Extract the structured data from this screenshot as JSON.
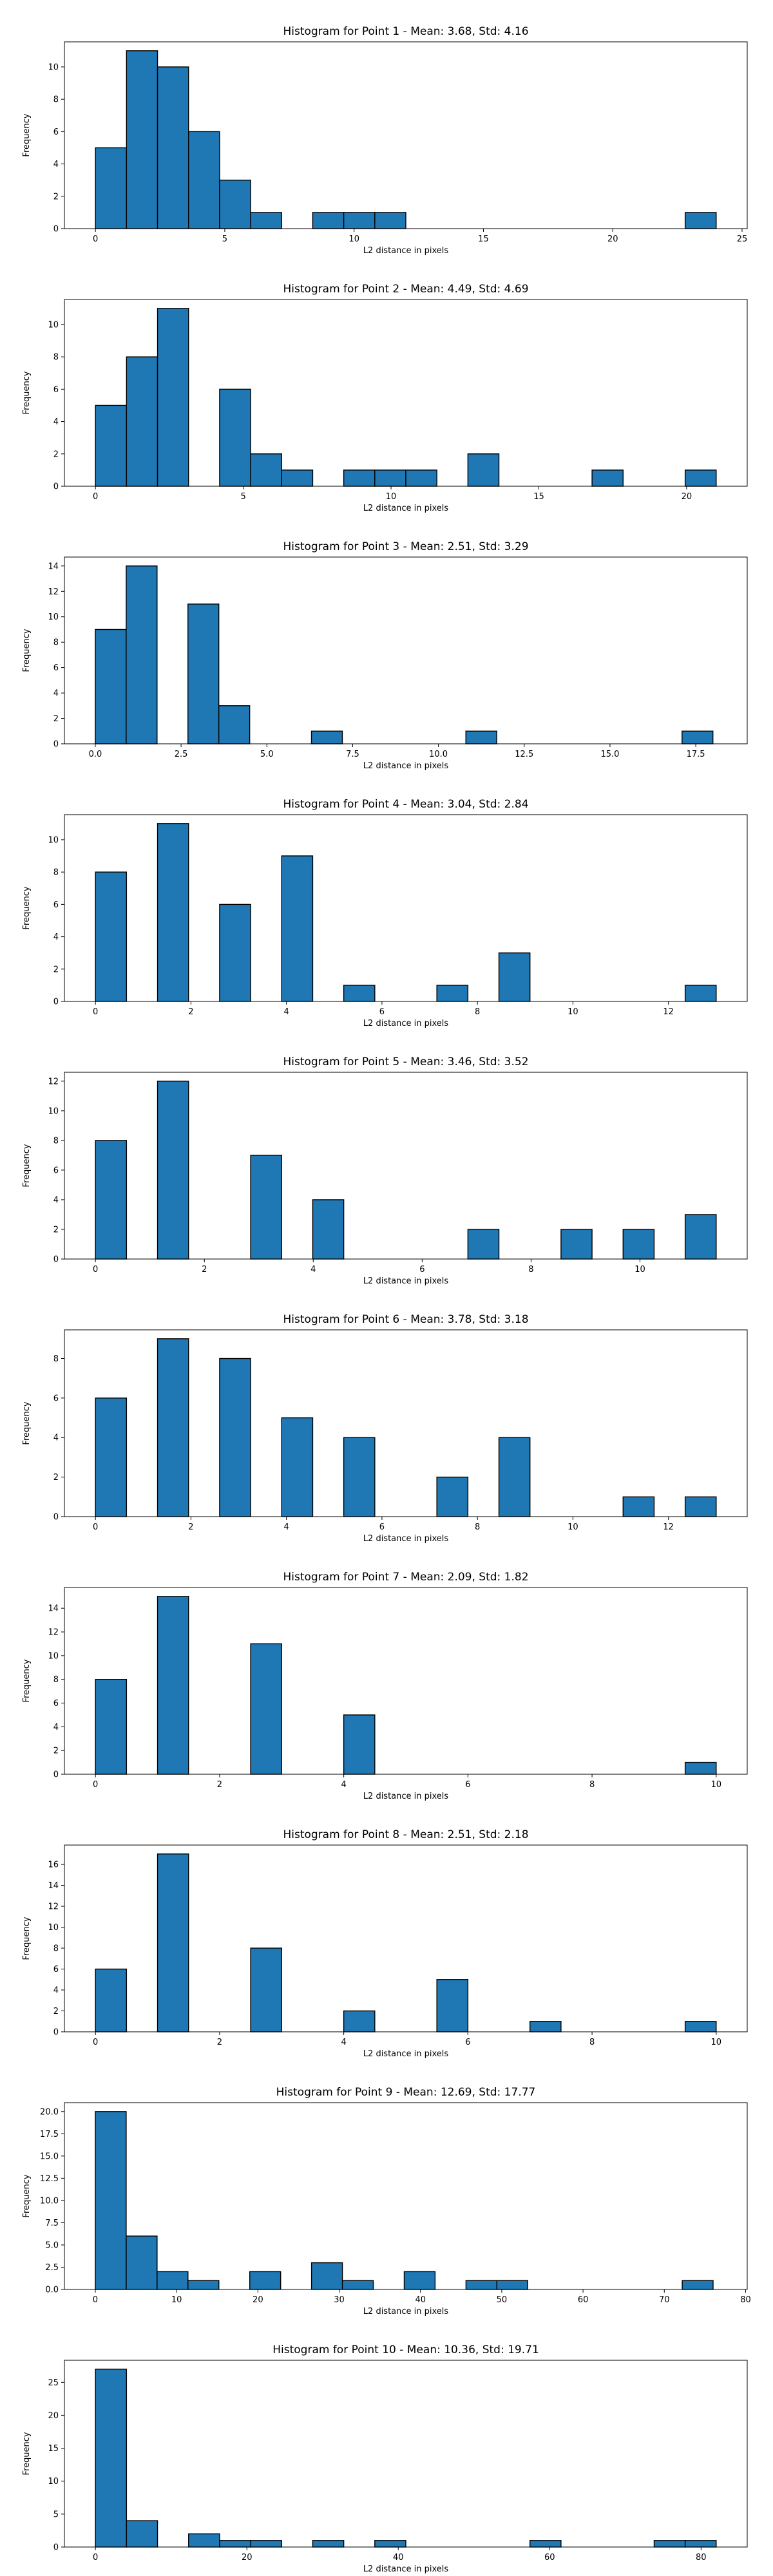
{
  "chart_data": [
    {
      "type": "bar",
      "title": "Histogram for Point 1 - Mean: 3.68, Std: 4.16",
      "xlabel": "L2 distance in pixels",
      "ylabel": "Frequency",
      "xlim": [
        -1.2,
        25.2
      ],
      "ylim": [
        0,
        11.55
      ],
      "bin_width": 1.2,
      "bins": [
        {
          "left": 0.0,
          "count": 5
        },
        {
          "left": 1.2,
          "count": 11
        },
        {
          "left": 2.4,
          "count": 10
        },
        {
          "left": 3.6,
          "count": 6
        },
        {
          "left": 4.8,
          "count": 3
        },
        {
          "left": 6.0,
          "count": 1
        },
        {
          "left": 8.4,
          "count": 1
        },
        {
          "left": 9.6,
          "count": 1
        },
        {
          "left": 10.8,
          "count": 1
        },
        {
          "left": 22.8,
          "count": 1
        }
      ],
      "xticks": [
        0,
        5,
        10,
        15,
        20,
        25
      ],
      "xtick_labels": [
        "0",
        "5",
        "10",
        "15",
        "20",
        "25"
      ],
      "yticks": [
        0,
        2,
        4,
        6,
        8,
        10
      ],
      "ytick_labels": [
        "0",
        "2",
        "4",
        "6",
        "8",
        "10"
      ]
    },
    {
      "type": "bar",
      "title": "Histogram for Point 2 - Mean: 4.49, Std: 4.69",
      "xlabel": "L2 distance in pixels",
      "ylabel": "Frequency",
      "xlim": [
        -1.05,
        22.05
      ],
      "ylim": [
        0,
        11.55
      ],
      "bin_width": 1.05,
      "bins": [
        {
          "left": 0.0,
          "count": 5
        },
        {
          "left": 1.05,
          "count": 8
        },
        {
          "left": 2.1,
          "count": 11
        },
        {
          "left": 4.2,
          "count": 6
        },
        {
          "left": 5.25,
          "count": 2
        },
        {
          "left": 6.3,
          "count": 1
        },
        {
          "left": 8.4,
          "count": 1
        },
        {
          "left": 9.45,
          "count": 1
        },
        {
          "left": 10.5,
          "count": 1
        },
        {
          "left": 12.6,
          "count": 2
        },
        {
          "left": 16.8,
          "count": 1
        },
        {
          "left": 19.95,
          "count": 1
        }
      ],
      "xticks": [
        0,
        5,
        10,
        15,
        20
      ],
      "xtick_labels": [
        "0",
        "5",
        "10",
        "15",
        "20"
      ],
      "yticks": [
        0,
        2,
        4,
        6,
        8,
        10
      ],
      "ytick_labels": [
        "0",
        "2",
        "4",
        "6",
        "8",
        "10"
      ]
    },
    {
      "type": "bar",
      "title": "Histogram for Point 3 - Mean: 2.51, Std: 3.29",
      "xlabel": "L2 distance in pixels",
      "ylabel": "Frequency",
      "xlim": [
        -0.9,
        19.0
      ],
      "ylim": [
        0,
        14.7
      ],
      "bin_width": 0.9,
      "bins": [
        {
          "left": 0.0,
          "count": 9
        },
        {
          "left": 0.9,
          "count": 14
        },
        {
          "left": 2.7,
          "count": 11
        },
        {
          "left": 3.6,
          "count": 3
        },
        {
          "left": 6.3,
          "count": 1
        },
        {
          "left": 10.8,
          "count": 1
        },
        {
          "left": 17.1,
          "count": 1
        }
      ],
      "xticks": [
        0,
        2.5,
        5,
        7.5,
        10,
        12.5,
        15,
        17.5
      ],
      "xtick_labels": [
        "0.0",
        "2.5",
        "5.0",
        "7.5",
        "10.0",
        "12.5",
        "15.0",
        "17.5"
      ],
      "yticks": [
        0,
        2,
        4,
        6,
        8,
        10,
        12,
        14
      ],
      "ytick_labels": [
        "0",
        "2",
        "4",
        "6",
        "8",
        "10",
        "12",
        "14"
      ]
    },
    {
      "type": "bar",
      "title": "Histogram for Point 4 - Mean: 3.04, Std: 2.84",
      "xlabel": "L2 distance in pixels",
      "ylabel": "Frequency",
      "xlim": [
        -0.65,
        13.65
      ],
      "ylim": [
        0,
        11.55
      ],
      "bin_width": 0.65,
      "bins": [
        {
          "left": 0.0,
          "count": 8
        },
        {
          "left": 1.3,
          "count": 11
        },
        {
          "left": 2.6,
          "count": 6
        },
        {
          "left": 3.9,
          "count": 9
        },
        {
          "left": 5.2,
          "count": 1
        },
        {
          "left": 7.15,
          "count": 1
        },
        {
          "left": 8.45,
          "count": 3
        },
        {
          "left": 12.35,
          "count": 1
        }
      ],
      "xticks": [
        0,
        2,
        4,
        6,
        8,
        10,
        12
      ],
      "xtick_labels": [
        "0",
        "2",
        "4",
        "6",
        "8",
        "10",
        "12"
      ],
      "yticks": [
        0,
        2,
        4,
        6,
        8,
        10
      ],
      "ytick_labels": [
        "0",
        "2",
        "4",
        "6",
        "8",
        "10"
      ]
    },
    {
      "type": "bar",
      "title": "Histogram for Point 5 - Mean: 3.46, Std: 3.52",
      "xlabel": "L2 distance in pixels",
      "ylabel": "Frequency",
      "xlim": [
        -0.57,
        11.97
      ],
      "ylim": [
        0,
        12.6
      ],
      "bin_width": 0.57,
      "bins": [
        {
          "left": 0.0,
          "count": 8
        },
        {
          "left": 1.14,
          "count": 12
        },
        {
          "left": 2.85,
          "count": 7
        },
        {
          "left": 3.99,
          "count": 4
        },
        {
          "left": 6.84,
          "count": 2
        },
        {
          "left": 8.55,
          "count": 2
        },
        {
          "left": 9.69,
          "count": 2
        },
        {
          "left": 10.83,
          "count": 3
        }
      ],
      "xticks": [
        0,
        2,
        4,
        6,
        8,
        10
      ],
      "xtick_labels": [
        "0",
        "2",
        "4",
        "6",
        "8",
        "10"
      ],
      "yticks": [
        0,
        2,
        4,
        6,
        8,
        10,
        12
      ],
      "ytick_labels": [
        "0",
        "2",
        "4",
        "6",
        "8",
        "10",
        "12"
      ]
    },
    {
      "type": "bar",
      "title": "Histogram for Point 6 - Mean: 3.78, Std: 3.18",
      "xlabel": "L2 distance in pixels",
      "ylabel": "Frequency",
      "xlim": [
        -0.65,
        13.65
      ],
      "ylim": [
        0,
        9.45
      ],
      "bin_width": 0.65,
      "bins": [
        {
          "left": 0.0,
          "count": 6
        },
        {
          "left": 1.3,
          "count": 9
        },
        {
          "left": 2.6,
          "count": 8
        },
        {
          "left": 3.9,
          "count": 5
        },
        {
          "left": 5.2,
          "count": 4
        },
        {
          "left": 7.15,
          "count": 2
        },
        {
          "left": 8.45,
          "count": 4
        },
        {
          "left": 11.05,
          "count": 1
        },
        {
          "left": 12.35,
          "count": 1
        }
      ],
      "xticks": [
        0,
        2,
        4,
        6,
        8,
        10,
        12
      ],
      "xtick_labels": [
        "0",
        "2",
        "4",
        "6",
        "8",
        "10",
        "12"
      ],
      "yticks": [
        0,
        2,
        4,
        6,
        8
      ],
      "ytick_labels": [
        "0",
        "2",
        "4",
        "6",
        "8"
      ]
    },
    {
      "type": "bar",
      "title": "Histogram for Point 7 - Mean: 2.09, Std: 1.82",
      "xlabel": "L2 distance in pixels",
      "ylabel": "Frequency",
      "xlim": [
        -0.5,
        10.5
      ],
      "ylim": [
        0,
        15.75
      ],
      "bin_width": 0.5,
      "bins": [
        {
          "left": 0.0,
          "count": 8
        },
        {
          "left": 1.0,
          "count": 15
        },
        {
          "left": 2.5,
          "count": 11
        },
        {
          "left": 4.0,
          "count": 5
        },
        {
          "left": 9.5,
          "count": 1
        }
      ],
      "xticks": [
        0,
        2,
        4,
        6,
        8,
        10
      ],
      "xtick_labels": [
        "0",
        "2",
        "4",
        "6",
        "8",
        "10"
      ],
      "yticks": [
        0,
        2,
        4,
        6,
        8,
        10,
        12,
        14
      ],
      "ytick_labels": [
        "0",
        "2",
        "4",
        "6",
        "8",
        "10",
        "12",
        "14"
      ]
    },
    {
      "type": "bar",
      "title": "Histogram for Point 8 - Mean: 2.51, Std: 2.18",
      "xlabel": "L2 distance in pixels",
      "ylabel": "Frequency",
      "xlim": [
        -0.5,
        10.5
      ],
      "ylim": [
        0,
        17.85
      ],
      "bin_width": 0.5,
      "bins": [
        {
          "left": 0.0,
          "count": 6
        },
        {
          "left": 1.0,
          "count": 17
        },
        {
          "left": 2.5,
          "count": 8
        },
        {
          "left": 4.0,
          "count": 2
        },
        {
          "left": 5.5,
          "count": 5
        },
        {
          "left": 7.0,
          "count": 1
        },
        {
          "left": 9.5,
          "count": 1
        }
      ],
      "xticks": [
        0,
        2,
        4,
        6,
        8,
        10
      ],
      "xtick_labels": [
        "0",
        "2",
        "4",
        "6",
        "8",
        "10"
      ],
      "yticks": [
        0,
        2,
        4,
        6,
        8,
        10,
        12,
        14,
        16
      ],
      "ytick_labels": [
        "0",
        "2",
        "4",
        "6",
        "8",
        "10",
        "12",
        "14",
        "16"
      ]
    },
    {
      "type": "bar",
      "title": "Histogram for Point 9 - Mean: 12.69, Std: 17.77",
      "xlabel": "L2 distance in pixels",
      "ylabel": "Frequency",
      "xlim": [
        -3.8,
        80.2
      ],
      "ylim": [
        0,
        21.0
      ],
      "bin_width": 3.8,
      "bins": [
        {
          "left": 0.0,
          "count": 20
        },
        {
          "left": 3.8,
          "count": 6
        },
        {
          "left": 7.6,
          "count": 2
        },
        {
          "left": 11.4,
          "count": 1
        },
        {
          "left": 19.0,
          "count": 2
        },
        {
          "left": 26.6,
          "count": 3
        },
        {
          "left": 30.4,
          "count": 1
        },
        {
          "left": 38.0,
          "count": 2
        },
        {
          "left": 45.6,
          "count": 1
        },
        {
          "left": 49.4,
          "count": 1
        },
        {
          "left": 72.2,
          "count": 1
        }
      ],
      "xticks": [
        0,
        10,
        20,
        30,
        40,
        50,
        60,
        70,
        80
      ],
      "xtick_labels": [
        "0",
        "10",
        "20",
        "30",
        "40",
        "50",
        "60",
        "70",
        "80"
      ],
      "yticks": [
        0,
        2.5,
        5,
        7.5,
        10,
        12.5,
        15,
        17.5,
        20
      ],
      "ytick_labels": [
        "0.0",
        "2.5",
        "5.0",
        "7.5",
        "10.0",
        "12.5",
        "15.0",
        "17.5",
        "20.0"
      ]
    },
    {
      "type": "bar",
      "title": "Histogram for Point 10 - Mean: 10.36, Std: 19.71",
      "xlabel": "L2 distance in pixels",
      "ylabel": "Frequency",
      "xlim": [
        -4.1,
        86.1
      ],
      "ylim": [
        0,
        28.35
      ],
      "bin_width": 4.1,
      "bins": [
        {
          "left": 0.0,
          "count": 27
        },
        {
          "left": 4.1,
          "count": 4
        },
        {
          "left": 12.3,
          "count": 2
        },
        {
          "left": 16.4,
          "count": 1
        },
        {
          "left": 20.5,
          "count": 1
        },
        {
          "left": 28.7,
          "count": 1
        },
        {
          "left": 36.9,
          "count": 1
        },
        {
          "left": 57.4,
          "count": 1
        },
        {
          "left": 73.8,
          "count": 1
        },
        {
          "left": 77.9,
          "count": 1
        }
      ],
      "xticks": [
        0,
        20,
        40,
        60,
        80
      ],
      "xtick_labels": [
        "0",
        "20",
        "40",
        "60",
        "80"
      ],
      "yticks": [
        0,
        5,
        10,
        15,
        20,
        25
      ],
      "ytick_labels": [
        "0",
        "5",
        "10",
        "15",
        "20",
        "25"
      ]
    }
  ]
}
